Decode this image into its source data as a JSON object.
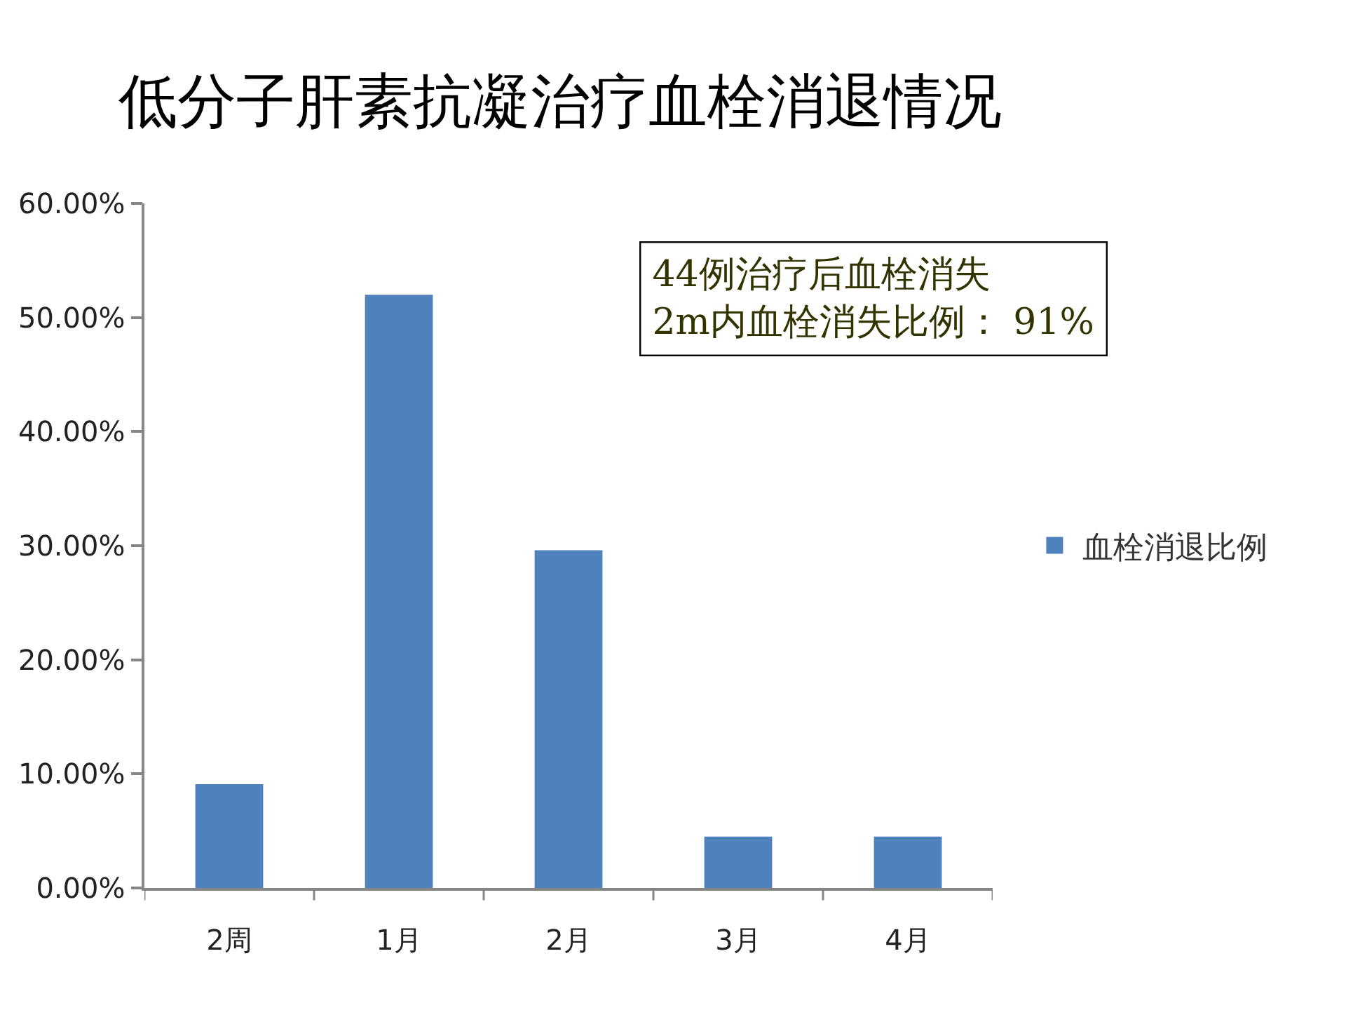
{
  "chart_data": {
    "type": "bar",
    "title": "低分子肝素抗凝治疗血栓消退情况",
    "categories": [
      "2周",
      "1月",
      "2月",
      "3月",
      "4月"
    ],
    "series": [
      {
        "name": "血栓消退比例",
        "color": "#4f81bd",
        "values": [
          9.1,
          52.0,
          29.6,
          4.5,
          4.5
        ]
      }
    ],
    "ylim": [
      0,
      60
    ],
    "yticks": [
      {
        "value": 0,
        "label": "0.00%"
      },
      {
        "value": 10,
        "label": "10.00%"
      },
      {
        "value": 20,
        "label": "20.00%"
      },
      {
        "value": 30,
        "label": "30.00%"
      },
      {
        "value": 40,
        "label": "40.00%"
      },
      {
        "value": 50,
        "label": "50.00%"
      },
      {
        "value": 60,
        "label": "60.00%"
      }
    ],
    "legend": "right",
    "annotations": [
      "44例治疗后血栓消失\n2m内血栓消失比例： 91%"
    ]
  }
}
